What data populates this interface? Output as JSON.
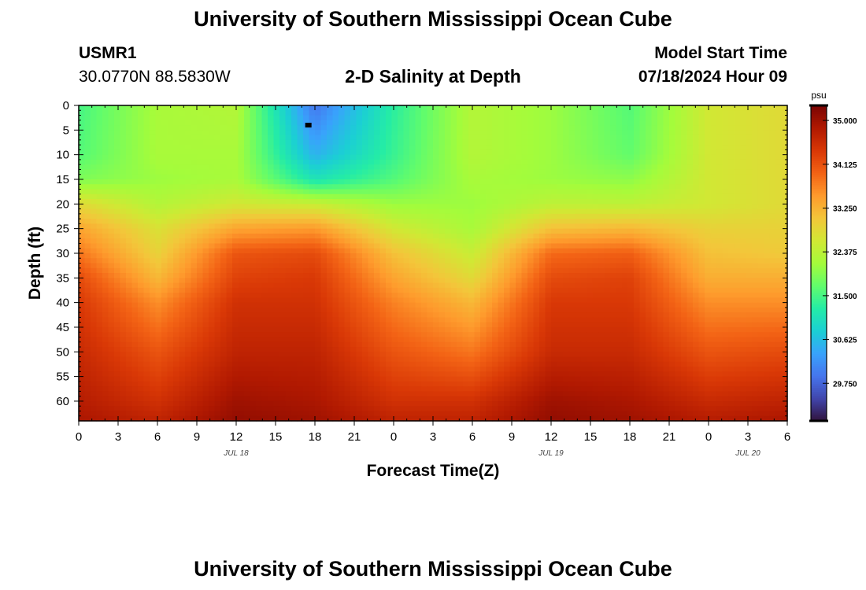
{
  "header": {
    "title": "University of Southern Mississippi Ocean Cube",
    "station_id": "USMR1",
    "coordinates": "30.0770N  88.5830W",
    "plot_title": "2-D Salinity at Depth",
    "model_start_label": "Model Start Time",
    "model_start_value": "07/18/2024 Hour 09"
  },
  "footer": {
    "title": "University of Southern Mississippi Ocean Cube"
  },
  "colors": {
    "colormap": [
      "#30123b",
      "#4145ab",
      "#4675ed",
      "#39a2fc",
      "#1bcfd4",
      "#24eca6",
      "#61fc6c",
      "#a4fc3b",
      "#d1e834",
      "#f3c63a",
      "#fe9b2d",
      "#f36315",
      "#d93806",
      "#b11901",
      "#7a0402"
    ]
  },
  "chart_data": {
    "type": "heatmap",
    "title": "2-D Salinity at Depth",
    "xlabel": "Forecast Time(Z)",
    "ylabel": "Depth (ft)",
    "x_tick_labels": [
      "0",
      "3",
      "6",
      "9",
      "12",
      "15",
      "18",
      "21",
      "0",
      "3",
      "6",
      "9",
      "12",
      "15",
      "18",
      "21",
      "0",
      "3",
      "6"
    ],
    "x_range_hours": [
      0,
      54
    ],
    "date_labels": [
      {
        "text": "JUL 18",
        "hour": 12
      },
      {
        "text": "JUL 19",
        "hour": 36
      },
      {
        "text": "JUL 20",
        "hour": 51
      }
    ],
    "y_tick_labels": [
      "0",
      "5",
      "10",
      "15",
      "20",
      "25",
      "30",
      "35",
      "40",
      "45",
      "50",
      "55",
      "60"
    ],
    "y_range_ft": [
      0,
      64
    ],
    "colorbar": {
      "unit": "psu",
      "vmin": 29.0,
      "vmax": 35.3,
      "tick_labels": [
        "35.000",
        "34.125",
        "33.250",
        "32.375",
        "31.500",
        "30.625",
        "29.750"
      ],
      "tick_values": [
        35.0,
        34.125,
        33.25,
        32.375,
        31.5,
        30.625,
        29.75
      ]
    },
    "salinity_psu": {
      "description_rows": "depth rows (ft) x time columns (forecast hour)",
      "depths_ft": [
        0,
        10,
        15,
        20,
        25,
        30,
        35,
        40,
        50,
        60,
        64
      ],
      "hours": [
        0,
        6,
        12,
        18,
        24,
        30,
        36,
        42,
        48,
        54
      ],
      "values": [
        [
          31.5,
          32.2,
          32.3,
          29.9,
          31.3,
          32.3,
          32.1,
          31.6,
          32.6,
          32.8
        ],
        [
          31.6,
          32.2,
          32.2,
          30.5,
          31.4,
          32.3,
          32.1,
          31.7,
          32.6,
          32.8
        ],
        [
          31.9,
          32.1,
          32.2,
          31.1,
          31.6,
          32.2,
          32.1,
          32.0,
          32.6,
          32.8
        ],
        [
          32.8,
          32.3,
          32.6,
          32.5,
          32.1,
          32.1,
          32.4,
          32.4,
          32.6,
          32.8
        ],
        [
          33.4,
          32.7,
          33.4,
          33.5,
          32.6,
          32.2,
          33.1,
          33.2,
          32.9,
          32.9
        ],
        [
          33.8,
          32.9,
          34.1,
          34.2,
          33.1,
          32.5,
          33.9,
          34.0,
          33.1,
          33.0
        ],
        [
          34.2,
          33.2,
          34.3,
          34.4,
          33.4,
          32.8,
          34.2,
          34.3,
          33.3,
          33.3
        ],
        [
          34.4,
          33.6,
          34.5,
          34.5,
          33.7,
          33.2,
          34.4,
          34.4,
          33.6,
          33.6
        ],
        [
          34.6,
          34.1,
          34.7,
          34.7,
          34.1,
          33.8,
          34.6,
          34.6,
          34.1,
          34.2
        ],
        [
          34.8,
          34.5,
          35.0,
          34.9,
          34.5,
          34.5,
          35.0,
          34.9,
          34.6,
          34.7
        ],
        [
          34.9,
          34.7,
          35.1,
          35.0,
          34.7,
          34.7,
          35.1,
          35.0,
          34.8,
          34.9
        ]
      ]
    },
    "marker": {
      "hour": 17.5,
      "depth_ft": 4
    }
  }
}
